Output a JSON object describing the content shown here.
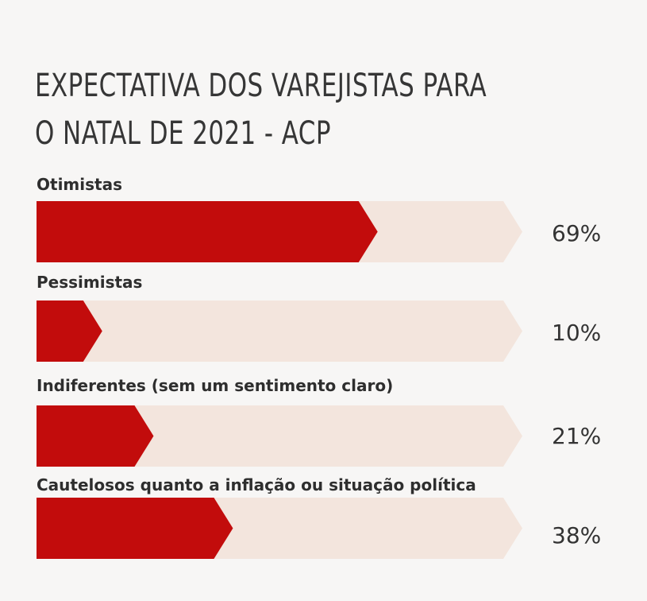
{
  "chart_data": {
    "type": "bar",
    "orientation": "horizontal",
    "title": "EXPECTATIVA DOS VAREJISTAS PARA O NATAL DE 2021 - ACP",
    "categories": [
      "Otimistas",
      "Pessimistas",
      "Indiferentes (sem um sentimento claro)",
      "Cautelosos quanto a inflação ou situação política"
    ],
    "values": [
      69,
      10,
      21,
      38
    ],
    "value_labels": [
      "69%",
      "10%",
      "21%",
      "38%"
    ],
    "unit": "%",
    "xlim": [
      0,
      100
    ],
    "grid": false,
    "legend": "none"
  },
  "colors": {
    "background": "#f7f6f5",
    "bar_fill": "#c20c0c",
    "bar_track": "#f3e5dd",
    "title": "#363636",
    "label": "#2e2e2e",
    "value": "#333333"
  }
}
